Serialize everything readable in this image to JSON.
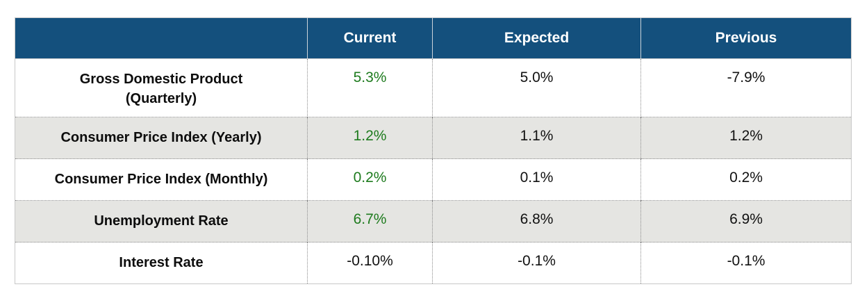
{
  "colors": {
    "header_bg": "#14507d",
    "header_text": "#ffffff",
    "positive_value": "#1e7b1e",
    "alt_row_bg": "#e5e5e2",
    "border_solid": "#c8c8c8",
    "border_dotted": "#8a8a8a",
    "text": "#111111"
  },
  "table": {
    "header": [
      "",
      "Current",
      "Expected",
      "Previous"
    ],
    "rows": [
      {
        "label": "Gross Domestic Product\n(Quarterly)",
        "current": "5.3%",
        "expected": "5.0%",
        "previous": "-7.9%",
        "current_green": true
      },
      {
        "label": "Consumer Price Index (Yearly)",
        "current": "1.2%",
        "expected": "1.1%",
        "previous": "1.2%",
        "current_green": true
      },
      {
        "label": "Consumer Price Index (Monthly)",
        "current": "0.2%",
        "expected": "0.1%",
        "previous": "0.2%",
        "current_green": true
      },
      {
        "label": "Unemployment Rate",
        "current": "6.7%",
        "expected": "6.8%",
        "previous": "6.9%",
        "current_green": true
      },
      {
        "label": "Interest Rate",
        "current": "-0.10%",
        "expected": "-0.1%",
        "previous": "-0.1%",
        "current_green": false
      }
    ]
  },
  "chart_data": {
    "type": "table",
    "columns": [
      "",
      "Current",
      "Expected",
      "Previous"
    ],
    "rows": [
      [
        "Gross Domestic Product (Quarterly)",
        "5.3%",
        "5.0%",
        "-7.9%"
      ],
      [
        "Consumer Price Index (Yearly)",
        "1.2%",
        "1.1%",
        "1.2%"
      ],
      [
        "Consumer Price Index (Monthly)",
        "0.2%",
        "0.1%",
        "0.2%"
      ],
      [
        "Unemployment Rate",
        "6.7%",
        "6.8%",
        "6.9%"
      ],
      [
        "Interest Rate",
        "-0.10%",
        "-0.1%",
        "-0.1%"
      ]
    ],
    "notes": "Current-column values shown in green except Interest Rate; rows 2 and 4 have gray background"
  }
}
